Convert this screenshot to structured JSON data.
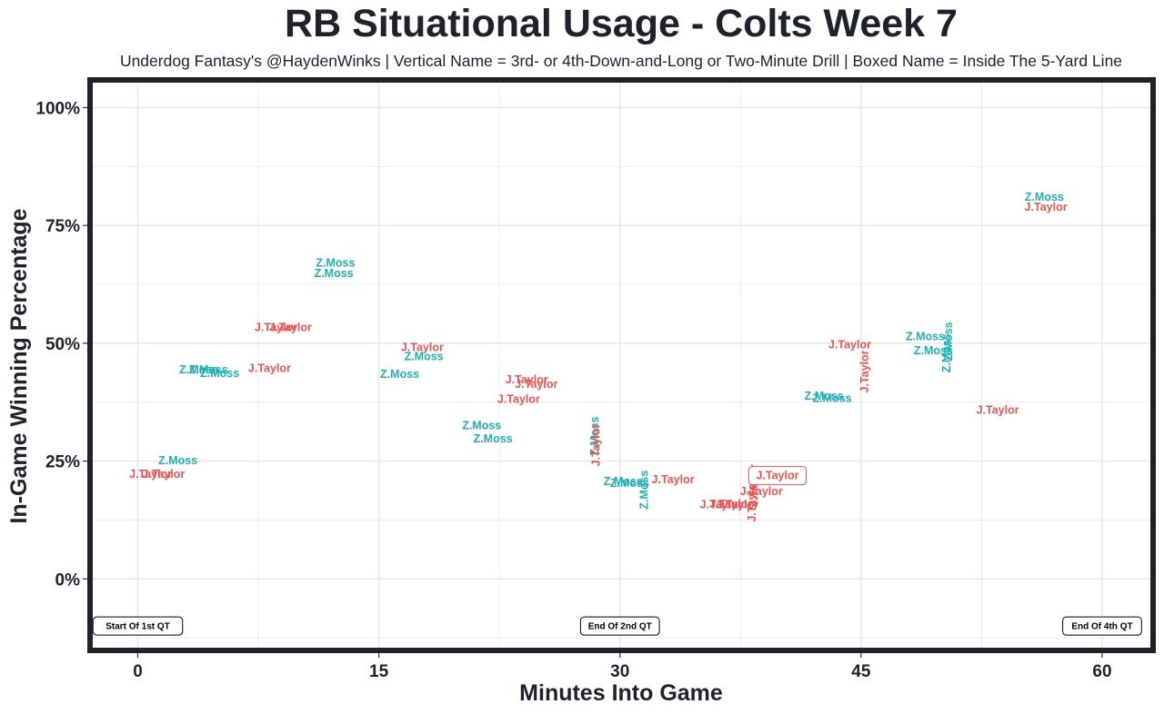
{
  "chart_data": {
    "type": "scatter",
    "title": "RB Situational Usage - Colts Week 7",
    "subtitle": "Underdog Fantasy's @HaydenWinks | Vertical Name = 3rd- or 4th-Down-and-Long or Two-Minute Drill | Boxed Name = Inside The 5-Yard Line",
    "xlabel": "Minutes Into Game",
    "ylabel": "In-Game Winning Percentage",
    "xlim": [
      -2.8,
      63.0
    ],
    "ylim": [
      -14.6,
      105.3
    ],
    "x_ticks": [
      0,
      15,
      30,
      45,
      60
    ],
    "x_tick_labels": [
      "0",
      "15",
      "30",
      "45",
      "60"
    ],
    "y_ticks": [
      0,
      25,
      50,
      75,
      100
    ],
    "y_tick_labels": [
      "0%",
      "25%",
      "50%",
      "75%",
      "100%"
    ],
    "grid": true,
    "legend": "none",
    "colors": {
      "Z.Moss": "#1bb1b8",
      "J.Taylor": "#ef5350",
      "frame": "#1e222b",
      "grid": "#e6e6e6"
    },
    "annotations": [
      {
        "label": "Start Of 1st QT",
        "x": 0,
        "y": -10
      },
      {
        "label": "End Of 2nd QT",
        "x": 30,
        "y": -10
      },
      {
        "label": "End Of 4th QT",
        "x": 60,
        "y": -10
      }
    ],
    "series": [
      {
        "name": "Z.Moss",
        "points": [
          {
            "x": 2.5,
            "y": 25.2,
            "vertical": false,
            "boxed": false
          },
          {
            "x": 3.8,
            "y": 44.5,
            "vertical": false,
            "boxed": false
          },
          {
            "x": 4.4,
            "y": 44.5,
            "vertical": false,
            "boxed": false
          },
          {
            "x": 5.1,
            "y": 43.7,
            "vertical": false,
            "boxed": false
          },
          {
            "x": 12.3,
            "y": 67.1,
            "vertical": false,
            "boxed": false
          },
          {
            "x": 12.2,
            "y": 64.9,
            "vertical": false,
            "boxed": false
          },
          {
            "x": 17.8,
            "y": 47.3,
            "vertical": false,
            "boxed": false
          },
          {
            "x": 16.3,
            "y": 43.5,
            "vertical": false,
            "boxed": false
          },
          {
            "x": 21.4,
            "y": 32.6,
            "vertical": false,
            "boxed": false
          },
          {
            "x": 22.1,
            "y": 29.8,
            "vertical": false,
            "boxed": false
          },
          {
            "x": 28.4,
            "y": 30.3,
            "vertical": true,
            "boxed": false
          },
          {
            "x": 30.2,
            "y": 20.8,
            "vertical": false,
            "boxed": false
          },
          {
            "x": 30.6,
            "y": 20.4,
            "vertical": false,
            "boxed": false
          },
          {
            "x": 31.5,
            "y": 18.9,
            "vertical": true,
            "boxed": false
          },
          {
            "x": 42.7,
            "y": 38.9,
            "vertical": false,
            "boxed": false
          },
          {
            "x": 43.2,
            "y": 38.4,
            "vertical": false,
            "boxed": false
          },
          {
            "x": 49.0,
            "y": 51.5,
            "vertical": false,
            "boxed": false
          },
          {
            "x": 49.5,
            "y": 48.5,
            "vertical": false,
            "boxed": false
          },
          {
            "x": 50.4,
            "y": 50.4,
            "vertical": true,
            "boxed": false
          },
          {
            "x": 50.3,
            "y": 47.9,
            "vertical": true,
            "boxed": false
          },
          {
            "x": 56.4,
            "y": 81.1,
            "vertical": false,
            "boxed": false
          }
        ]
      },
      {
        "name": "J.Taylor",
        "points": [
          {
            "x": 0.8,
            "y": 22.3,
            "vertical": false,
            "boxed": false
          },
          {
            "x": 1.6,
            "y": 22.3,
            "vertical": false,
            "boxed": false
          },
          {
            "x": 8.2,
            "y": 44.8,
            "vertical": false,
            "boxed": false
          },
          {
            "x": 8.6,
            "y": 53.4,
            "vertical": false,
            "boxed": false
          },
          {
            "x": 9.5,
            "y": 53.4,
            "vertical": false,
            "boxed": false
          },
          {
            "x": 17.7,
            "y": 49.2,
            "vertical": false,
            "boxed": false
          },
          {
            "x": 24.2,
            "y": 42.4,
            "vertical": false,
            "boxed": false
          },
          {
            "x": 24.8,
            "y": 41.4,
            "vertical": false,
            "boxed": false
          },
          {
            "x": 23.7,
            "y": 38.2,
            "vertical": false,
            "boxed": false
          },
          {
            "x": 28.5,
            "y": 28.4,
            "vertical": true,
            "boxed": false
          },
          {
            "x": 33.3,
            "y": 21.2,
            "vertical": false,
            "boxed": false
          },
          {
            "x": 36.3,
            "y": 15.9,
            "vertical": false,
            "boxed": false
          },
          {
            "x": 36.9,
            "y": 16.0,
            "vertical": false,
            "boxed": false
          },
          {
            "x": 37.3,
            "y": 15.9,
            "vertical": false,
            "boxed": false
          },
          {
            "x": 38.3,
            "y": 19.8,
            "vertical": true,
            "boxed": false
          },
          {
            "x": 38.2,
            "y": 16.6,
            "vertical": true,
            "boxed": false
          },
          {
            "x": 38.8,
            "y": 18.7,
            "vertical": false,
            "boxed": false
          },
          {
            "x": 39.8,
            "y": 21.9,
            "vertical": false,
            "boxed": true
          },
          {
            "x": 44.3,
            "y": 49.8,
            "vertical": false,
            "boxed": false
          },
          {
            "x": 45.2,
            "y": 44.0,
            "vertical": true,
            "boxed": false
          },
          {
            "x": 53.5,
            "y": 35.9,
            "vertical": false,
            "boxed": false
          },
          {
            "x": 56.5,
            "y": 79.0,
            "vertical": false,
            "boxed": false
          }
        ]
      }
    ]
  }
}
